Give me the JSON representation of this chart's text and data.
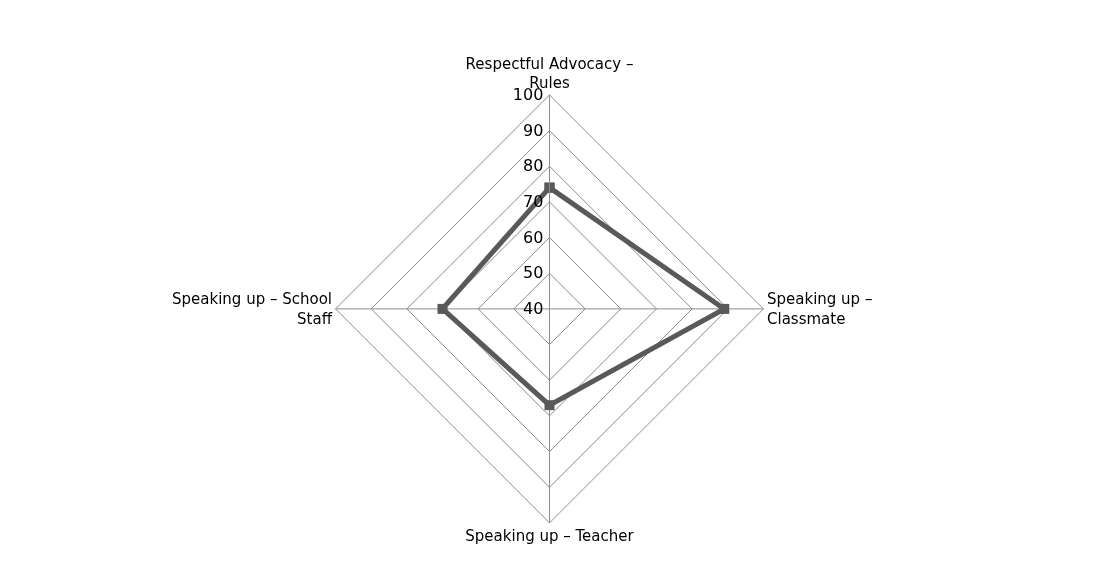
{
  "chart_data": {
    "type": "radar",
    "categories": [
      "Respectful Advocacy – Rules",
      "Speaking up – Classmate",
      "Speaking up – Teacher",
      "Speaking up – School Staff"
    ],
    "series": [
      {
        "color": "#595959",
        "values": [
          74,
          89,
          67,
          70
        ]
      }
    ],
    "ylim": [
      40,
      100
    ],
    "yticks": [
      40,
      50,
      60,
      70,
      80,
      90,
      100
    ],
    "grid": true,
    "marker": "square",
    "line_style": "solid",
    "legend": false
  }
}
